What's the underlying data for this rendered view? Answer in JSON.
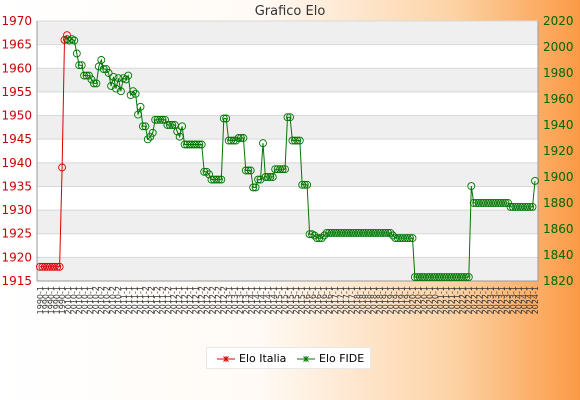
{
  "chart_data": {
    "type": "line",
    "title": "Grafico Elo",
    "x_tick_labels": [
      "1990-1",
      "2010-1",
      "2010-2",
      "2011-1",
      "2011-2",
      "2012-1",
      "2012-2",
      "2013-1",
      "2014-1",
      "2015-1",
      "2016-1",
      "2017-1",
      "2018-1",
      "2019-1",
      "2020-1",
      "2021-1",
      "2022-1",
      "2023-1",
      "2024-1"
    ],
    "y_left": {
      "min": 1915,
      "max": 1970,
      "ticks": [
        1915,
        1920,
        1925,
        1930,
        1935,
        1940,
        1945,
        1950,
        1955,
        1960,
        1965,
        1970
      ]
    },
    "y_right": {
      "min": 1820,
      "max": 2020,
      "ticks": [
        1820,
        1840,
        1860,
        1880,
        1900,
        1920,
        1940,
        1960,
        1980,
        2000,
        2020
      ]
    },
    "grid": true,
    "legend_position": "bottom",
    "series": [
      {
        "name": "Elo Italia",
        "axis": "left",
        "color": "#dd0000",
        "values": [
          1918,
          1918,
          1918,
          1918,
          1918,
          1918,
          1918,
          1918,
          1918,
          1939,
          1966,
          1967
        ]
      },
      {
        "name": "Elo FIDE",
        "axis": "right",
        "color": "#007700",
        "values": [
          null,
          null,
          null,
          null,
          null,
          null,
          null,
          null,
          null,
          null,
          null,
          2006,
          2005,
          2006,
          2005,
          1995,
          1986,
          1986,
          1978,
          1978,
          1978,
          1975,
          1972,
          1972,
          1985,
          1990,
          1983,
          1983,
          1980,
          1970,
          1977,
          1968,
          1976,
          1966,
          1976,
          1975,
          1978,
          1963,
          1966,
          1964,
          1948,
          1954,
          1939,
          1939,
          1929,
          1931,
          1934,
          1944,
          1944,
          1944,
          1944,
          1944,
          1940,
          1940,
          1940,
          1940,
          1935,
          1931,
          1939,
          1925,
          1925,
          1925,
          1925,
          1925,
          1925,
          1925,
          1925,
          1904,
          1904,
          1902,
          1898,
          1898,
          1898,
          1898,
          1898,
          1945,
          1945,
          1928,
          1928,
          1928,
          1928,
          1930,
          1930,
          1930,
          1905,
          1905,
          1905,
          1892,
          1892,
          1898,
          1898,
          1926,
          1900,
          1900,
          1900,
          1900,
          1906,
          1906,
          1906,
          1906,
          1906,
          1946,
          1946,
          1928,
          1928,
          1928,
          1928,
          1894,
          1894,
          1894,
          1856,
          1856,
          1855,
          1853,
          1853,
          1853,
          1855,
          1857,
          1857,
          1857,
          1857,
          1857,
          1857,
          1857,
          1857,
          1857,
          1857,
          1857,
          1857,
          1857,
          1857,
          1857,
          1857,
          1857,
          1857,
          1857,
          1857,
          1857,
          1857,
          1857,
          1857,
          1857,
          1857,
          1857,
          1855,
          1853,
          1853,
          1853,
          1853,
          1853,
          1853,
          1853,
          1853,
          1823,
          1823,
          1823,
          1823,
          1823,
          1823,
          1823,
          1823,
          1823,
          1823,
          1823,
          1823,
          1823,
          1823,
          1823,
          1823,
          1823,
          1823,
          1823,
          1823,
          1823,
          1823,
          1823,
          1893,
          1880,
          1880,
          1880,
          1880,
          1880,
          1880,
          1880,
          1880,
          1880,
          1880,
          1880,
          1880,
          1880,
          1880,
          1880,
          1877,
          1877,
          1877,
          1877,
          1877,
          1877,
          1877,
          1877,
          1877,
          1877,
          1897
        ]
      }
    ]
  }
}
